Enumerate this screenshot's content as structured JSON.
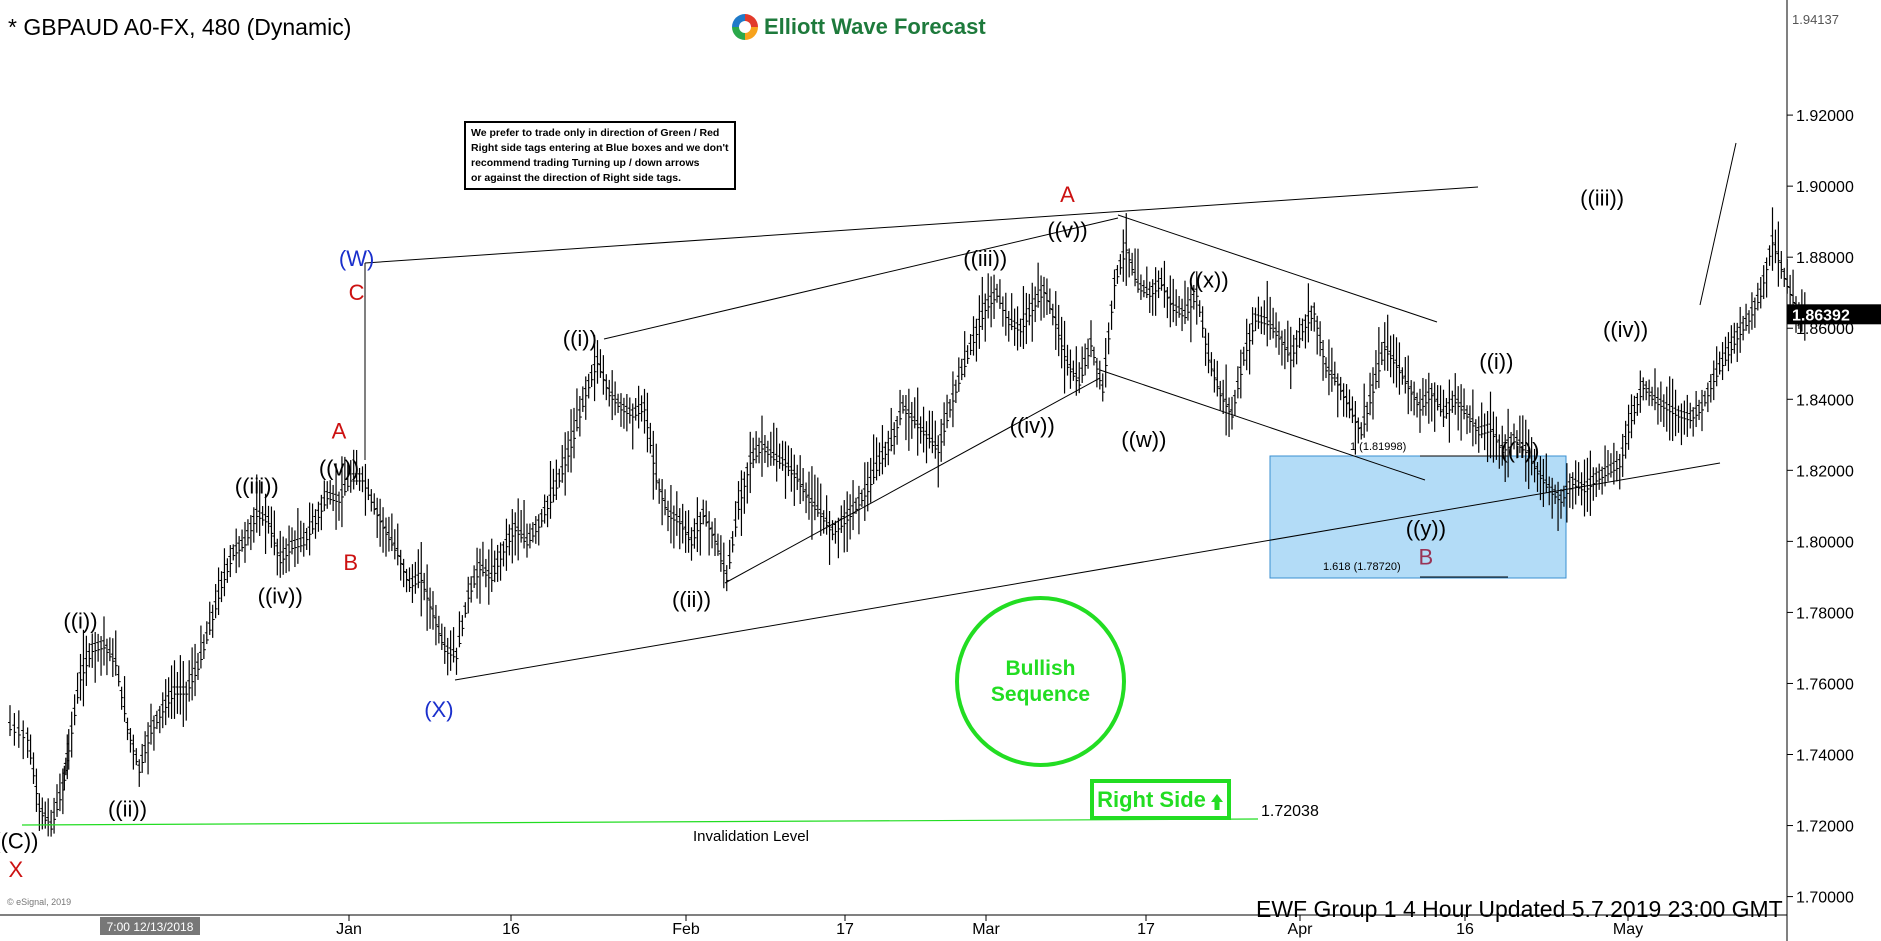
{
  "header": {
    "symbol_title": "* GBPAUD A0-FX, 480 (Dynamic)",
    "brand": "Elliott Wave Forecast"
  },
  "notice": {
    "lines": [
      "We prefer to trade only in direction of Green / Red",
      "Right side tags entering at Blue boxes and we don't",
      "recommend trading Turning up / down arrows",
      "or against the direction of Right side tags."
    ]
  },
  "badges": {
    "bullish_line1": "Bullish",
    "bullish_line2": "Sequence",
    "right_side": "Right Side"
  },
  "footer": {
    "update_text": "EWF Group 1 4 Hour  Updated 5.7.2019 23:00 GMT",
    "copyright": "© eSignal, 2019"
  },
  "colors": {
    "bullish": "#22dd22",
    "blue_box": "#b3dcf7",
    "price_tag": "#000000",
    "wave_red": "#cc1111",
    "wave_blue": "#1a2fcc",
    "wave_maroon": "#993355"
  },
  "chart_data": {
    "type": "line",
    "title": "* GBPAUD A0-FX, 480 (Dynamic)",
    "y_axis": {
      "ticks": [
        "1.70000",
        "1.72000",
        "1.74000",
        "1.76000",
        "1.78000",
        "1.80000",
        "1.82000",
        "1.84000",
        "1.86000",
        "1.88000",
        "1.90000",
        "1.92000"
      ],
      "top_label": "1.94137",
      "ylim": [
        1.6875,
        1.9524
      ]
    },
    "x_axis": {
      "ticks": [
        "Jan",
        "16",
        "Feb",
        "17",
        "Mar",
        "17",
        "Apr",
        "16",
        "May"
      ],
      "cursor_label": "7:00 12/13/2018"
    },
    "last_price": "1.86392",
    "series": [
      {
        "values": [
          [
            0,
            1.748
          ],
          [
            3,
            1.745
          ],
          [
            5,
            1.725
          ],
          [
            7,
            1.72
          ],
          [
            9,
            1.731
          ],
          [
            10,
            1.742
          ],
          [
            12,
            1.762
          ],
          [
            14,
            1.77
          ],
          [
            16,
            1.771
          ],
          [
            18,
            1.766
          ],
          [
            20,
            1.748
          ],
          [
            22,
            1.736
          ],
          [
            24,
            1.747
          ],
          [
            26,
            1.753
          ],
          [
            28,
            1.758
          ],
          [
            30,
            1.758
          ],
          [
            32,
            1.765
          ],
          [
            34,
            1.776
          ],
          [
            36,
            1.788
          ],
          [
            38,
            1.797
          ],
          [
            40,
            1.8
          ],
          [
            42,
            1.808
          ],
          [
            44,
            1.806
          ],
          [
            46,
            1.795
          ],
          [
            48,
            1.799
          ],
          [
            50,
            1.8
          ],
          [
            52,
            1.806
          ],
          [
            54,
            1.813
          ],
          [
            56,
            1.812
          ],
          [
            58,
            1.818
          ],
          [
            60,
            1.818
          ],
          [
            62,
            1.81
          ],
          [
            64,
            1.803
          ],
          [
            66,
            1.797
          ],
          [
            68,
            1.788
          ],
          [
            70,
            1.79
          ],
          [
            72,
            1.78
          ],
          [
            74,
            1.77
          ],
          [
            76,
            1.768
          ],
          [
            78,
            1.785
          ],
          [
            80,
            1.793
          ],
          [
            82,
            1.79
          ],
          [
            84,
            1.798
          ],
          [
            86,
            1.804
          ],
          [
            88,
            1.8
          ],
          [
            90,
            1.805
          ],
          [
            92,
            1.812
          ],
          [
            94,
            1.82
          ],
          [
            96,
            1.83
          ],
          [
            98,
            1.842
          ],
          [
            100,
            1.851
          ],
          [
            102,
            1.842
          ],
          [
            104,
            1.838
          ],
          [
            106,
            1.836
          ],
          [
            108,
            1.838
          ],
          [
            110,
            1.818
          ],
          [
            112,
            1.808
          ],
          [
            114,
            1.806
          ],
          [
            116,
            1.8
          ],
          [
            118,
            1.808
          ],
          [
            120,
            1.801
          ],
          [
            122,
            1.79
          ],
          [
            124,
            1.81
          ],
          [
            126,
            1.823
          ],
          [
            128,
            1.827
          ],
          [
            130,
            1.824
          ],
          [
            132,
            1.822
          ],
          [
            134,
            1.818
          ],
          [
            136,
            1.812
          ],
          [
            138,
            1.808
          ],
          [
            140,
            1.803
          ],
          [
            142,
            1.806
          ],
          [
            144,
            1.81
          ],
          [
            146,
            1.815
          ],
          [
            148,
            1.823
          ],
          [
            150,
            1.828
          ],
          [
            152,
            1.838
          ],
          [
            154,
            1.834
          ],
          [
            156,
            1.83
          ],
          [
            158,
            1.826
          ],
          [
            160,
            1.838
          ],
          [
            162,
            1.848
          ],
          [
            164,
            1.857
          ],
          [
            166,
            1.866
          ],
          [
            168,
            1.87
          ],
          [
            170,
            1.862
          ],
          [
            172,
            1.86
          ],
          [
            174,
            1.866
          ],
          [
            176,
            1.871
          ],
          [
            178,
            1.862
          ],
          [
            180,
            1.85
          ],
          [
            182,
            1.845
          ],
          [
            184,
            1.856
          ],
          [
            186,
            1.843
          ],
          [
            188,
            1.873
          ],
          [
            190,
            1.883
          ],
          [
            192,
            1.872
          ],
          [
            194,
            1.87
          ],
          [
            196,
            1.873
          ],
          [
            198,
            1.866
          ],
          [
            200,
            1.864
          ],
          [
            202,
            1.87
          ],
          [
            204,
            1.852
          ],
          [
            206,
            1.842
          ],
          [
            208,
            1.836
          ],
          [
            210,
            1.852
          ],
          [
            212,
            1.863
          ],
          [
            214,
            1.862
          ],
          [
            216,
            1.858
          ],
          [
            218,
            1.852
          ],
          [
            220,
            1.86
          ],
          [
            222,
            1.865
          ],
          [
            224,
            1.849
          ],
          [
            226,
            1.845
          ],
          [
            228,
            1.838
          ],
          [
            230,
            1.831
          ],
          [
            232,
            1.843
          ],
          [
            234,
            1.855
          ],
          [
            236,
            1.85
          ],
          [
            238,
            1.844
          ],
          [
            240,
            1.838
          ],
          [
            242,
            1.842
          ],
          [
            244,
            1.836
          ],
          [
            246,
            1.84
          ],
          [
            248,
            1.836
          ],
          [
            250,
            1.831
          ],
          [
            252,
            1.832
          ],
          [
            254,
            1.826
          ],
          [
            256,
            1.829
          ],
          [
            258,
            1.826
          ],
          [
            260,
            1.82
          ],
          [
            262,
            1.815
          ],
          [
            264,
            1.812
          ],
          [
            266,
            1.817
          ],
          [
            268,
            1.815
          ],
          [
            270,
            1.818
          ],
          [
            272,
            1.82
          ],
          [
            274,
            1.822
          ],
          [
            276,
            1.835
          ],
          [
            278,
            1.844
          ],
          [
            280,
            1.84
          ],
          [
            282,
            1.838
          ],
          [
            284,
            1.836
          ],
          [
            286,
            1.835
          ],
          [
            288,
            1.838
          ],
          [
            290,
            1.846
          ],
          [
            292,
            1.852
          ],
          [
            294,
            1.858
          ],
          [
            296,
            1.863
          ],
          [
            298,
            1.87
          ],
          [
            300,
            1.885
          ],
          [
            302,
            1.875
          ],
          [
            304,
            1.866
          ],
          [
            306,
            1.862
          ]
        ]
      }
    ],
    "wave_labels": [
      {
        "text": "((C))",
        "x": 1,
        "y": 1.7135,
        "color": "black"
      },
      {
        "text": "X",
        "x": 1,
        "y": 1.7055,
        "color": "red"
      },
      {
        "text": "((i))",
        "x": 12,
        "y": 1.7755,
        "color": "black"
      },
      {
        "text": "((ii))",
        "x": 20,
        "y": 1.7225,
        "color": "black"
      },
      {
        "text": "((iii))",
        "x": 42,
        "y": 1.8135,
        "color": "black"
      },
      {
        "text": "((iv))",
        "x": 46,
        "y": 1.7825,
        "color": "black"
      },
      {
        "text": "((v))",
        "x": 56,
        "y": 1.8185,
        "color": "black"
      },
      {
        "text": "A",
        "x": 56,
        "y": 1.829,
        "color": "red"
      },
      {
        "text": "B",
        "x": 58,
        "y": 1.792,
        "color": "red"
      },
      {
        "text": "(W)",
        "x": 59,
        "y": 1.8775,
        "color": "blue"
      },
      {
        "text": "C",
        "x": 59,
        "y": 1.868,
        "color": "red"
      },
      {
        "text": "(X)",
        "x": 73,
        "y": 1.7505,
        "color": "blue"
      },
      {
        "text": "((i))",
        "x": 97,
        "y": 1.855,
        "color": "black"
      },
      {
        "text": "((ii))",
        "x": 116,
        "y": 1.7815,
        "color": "black"
      },
      {
        "text": "((iii))",
        "x": 166,
        "y": 1.8775,
        "color": "black"
      },
      {
        "text": "((iv))",
        "x": 174,
        "y": 1.8305,
        "color": "black"
      },
      {
        "text": "((v))",
        "x": 180,
        "y": 1.8855,
        "color": "black"
      },
      {
        "text": "A",
        "x": 180,
        "y": 1.8955,
        "color": "red"
      },
      {
        "text": "((w))",
        "x": 193,
        "y": 1.8265,
        "color": "black"
      },
      {
        "text": "((x))",
        "x": 204,
        "y": 1.8715,
        "color": "black"
      },
      {
        "text": "((y))",
        "x": 241,
        "y": 1.8015,
        "color": "black"
      },
      {
        "text": "B",
        "x": 241,
        "y": 1.7935,
        "color": "maroon"
      },
      {
        "text": "((i))",
        "x": 253,
        "y": 1.8485,
        "color": "black"
      },
      {
        "text": "((ii))",
        "x": 257,
        "y": 1.8235,
        "color": "black"
      },
      {
        "text": "((iii))",
        "x": 271,
        "y": 1.8945,
        "color": "black"
      },
      {
        "text": "((iv))",
        "x": 275,
        "y": 1.8575,
        "color": "black"
      }
    ],
    "fib_levels": [
      {
        "text": "1 (1.81998)",
        "value": 1.81998
      },
      {
        "text": "1.618 (1.78720)",
        "value": 1.7872
      }
    ],
    "invalidation": {
      "label": "Invalidation Level",
      "value": "1.72038"
    }
  }
}
